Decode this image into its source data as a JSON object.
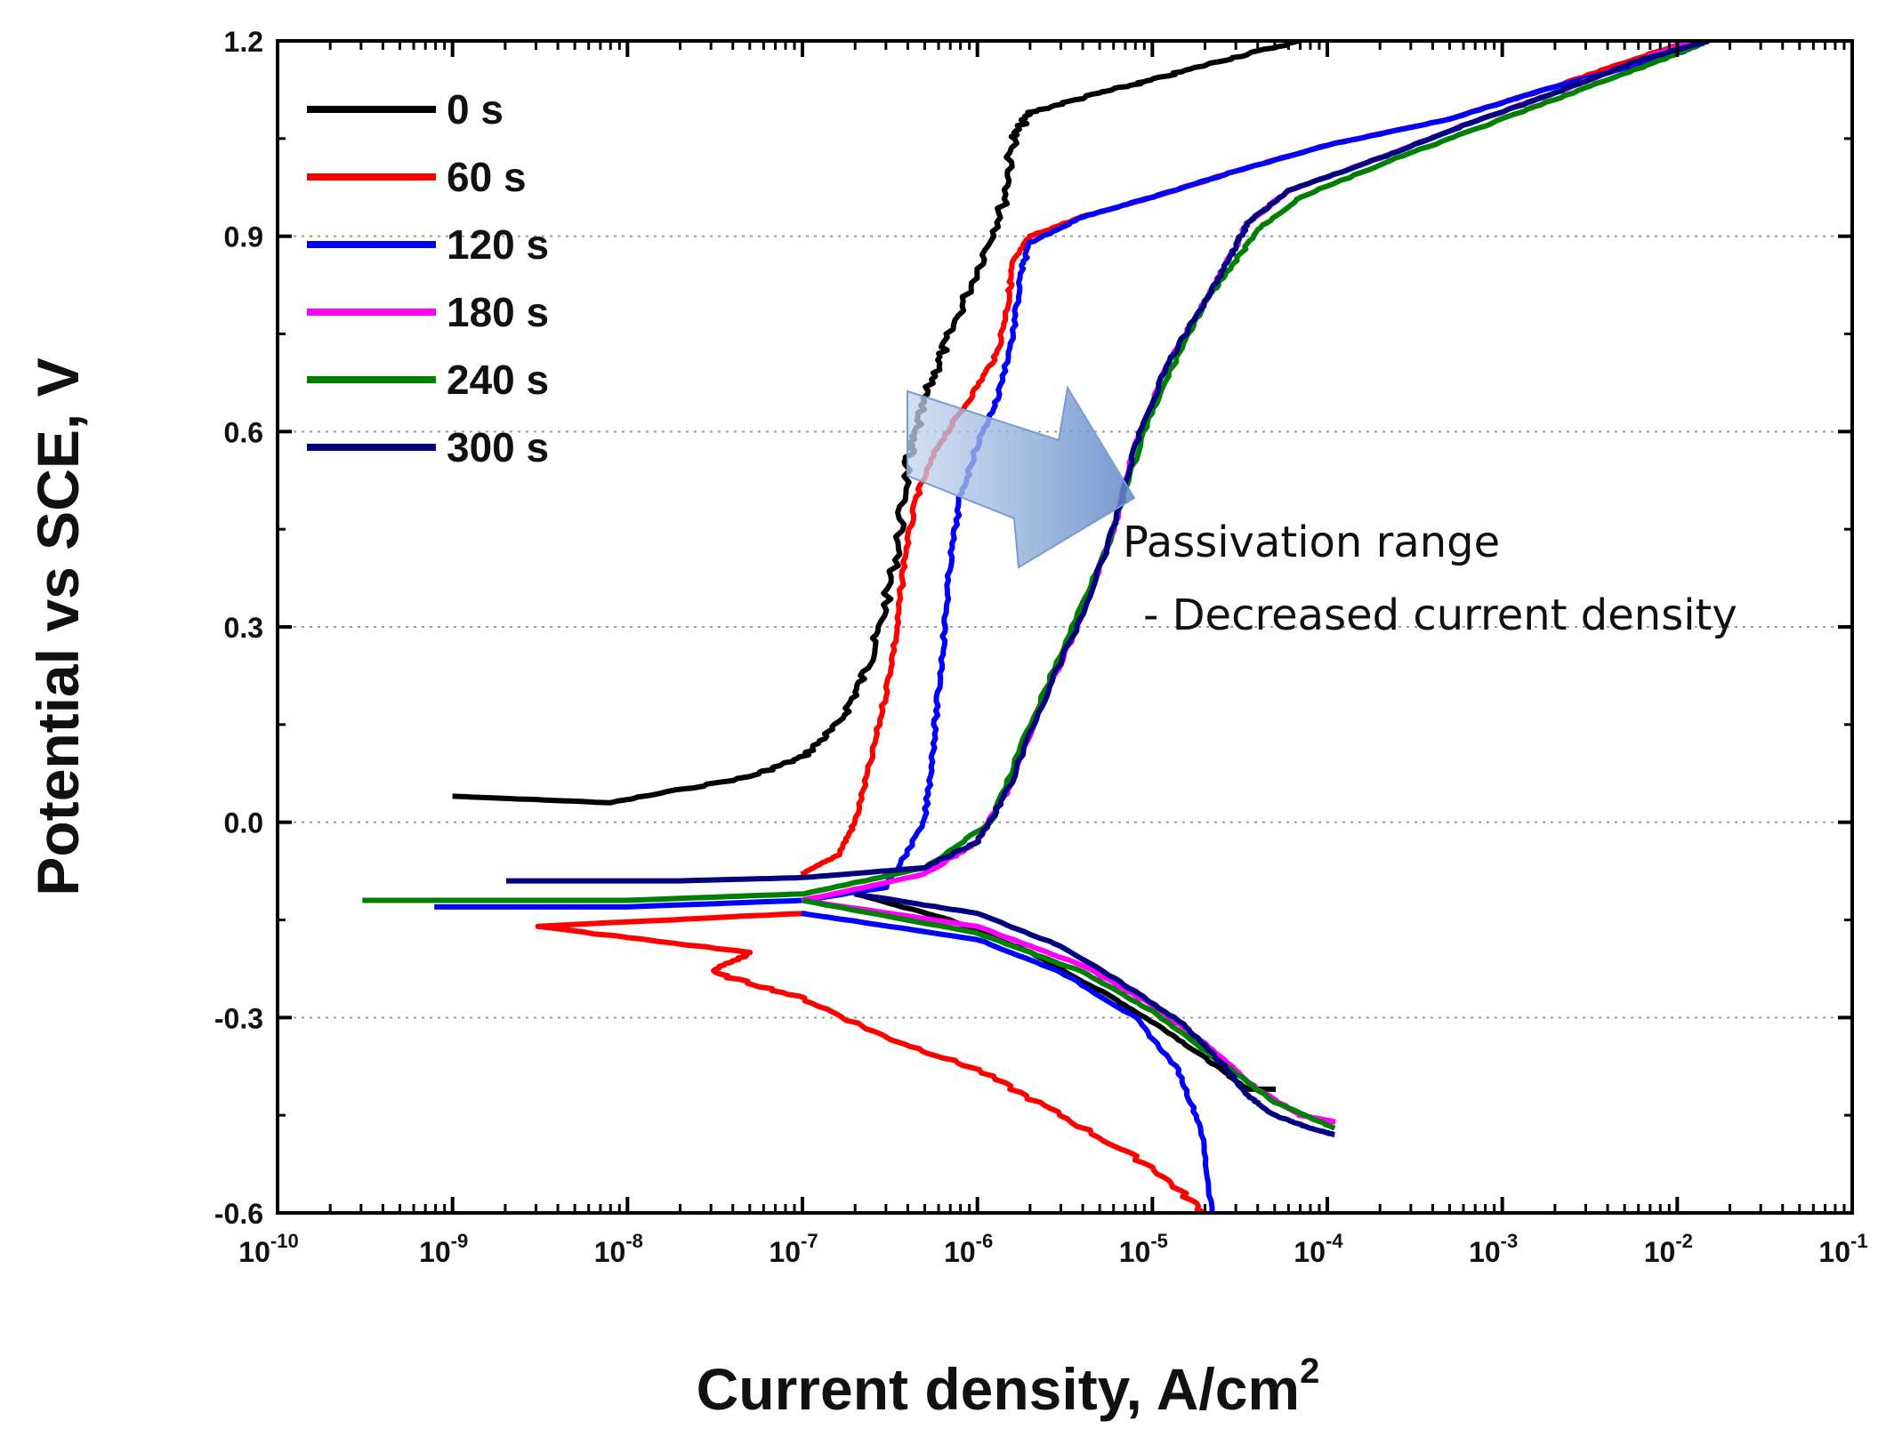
{
  "chart_data": {
    "type": "line",
    "title": "",
    "xlabel": "Current density, A/cm",
    "xlabel_superscript": "2",
    "ylabel": "Potential vs SCE, V",
    "xscale": "log",
    "xlim": [
      1e-10,
      0.1
    ],
    "ylim": [
      -0.6,
      1.2
    ],
    "x_ticks": [
      {
        "base": "10",
        "exp": "-10",
        "value": 1e-10
      },
      {
        "base": "10",
        "exp": "-9",
        "value": 1e-09
      },
      {
        "base": "10",
        "exp": "-8",
        "value": 1e-08
      },
      {
        "base": "10",
        "exp": "-7",
        "value": 1e-07
      },
      {
        "base": "10",
        "exp": "-6",
        "value": 1e-06
      },
      {
        "base": "10",
        "exp": "-5",
        "value": 1e-05
      },
      {
        "base": "10",
        "exp": "-4",
        "value": 0.0001
      },
      {
        "base": "10",
        "exp": "-3",
        "value": 0.001
      },
      {
        "base": "10",
        "exp": "-2",
        "value": 0.01
      },
      {
        "base": "10",
        "exp": "-1",
        "value": 0.1
      }
    ],
    "y_ticks": [
      {
        "label": "1.2",
        "value": 1.2
      },
      {
        "label": "0.9",
        "value": 0.9
      },
      {
        "label": "0.6",
        "value": 0.6
      },
      {
        "label": "0.3",
        "value": 0.3
      },
      {
        "label": "0.0",
        "value": 0.0
      },
      {
        "label": "-0.3",
        "value": -0.3
      },
      {
        "label": "-0.6",
        "value": -0.6
      }
    ],
    "grid": "horizontal dotted",
    "legend_position": "top-left",
    "series": [
      {
        "name": "0 s",
        "color": "#000000",
        "points": [
          [
            1e-09,
            0.04
          ],
          [
            8e-09,
            0.03
          ],
          [
            5e-08,
            0.07
          ],
          [
            1e-07,
            0.1
          ],
          [
            1.6e-07,
            0.15
          ],
          [
            2.2e-07,
            0.22
          ],
          [
            2.8e-07,
            0.3
          ],
          [
            3.5e-07,
            0.42
          ],
          [
            4e-07,
            0.55
          ],
          [
            4.5e-07,
            0.6
          ],
          [
            5.5e-07,
            0.68
          ],
          [
            7e-07,
            0.75
          ],
          [
            1e-06,
            0.85
          ],
          [
            1.4e-06,
            0.95
          ],
          [
            1.6e-06,
            1.05
          ],
          [
            2e-06,
            1.09
          ],
          [
            5e-06,
            1.12
          ],
          [
            1e-05,
            1.14
          ],
          [
            2.5e-05,
            1.17
          ],
          [
            7e-05,
            1.2
          ]
        ],
        "cathodic": [
          [
            2e-07,
            -0.11
          ],
          [
            7e-07,
            -0.15
          ],
          [
            2e-06,
            -0.2
          ],
          [
            6e-06,
            -0.27
          ],
          [
            1.2e-05,
            -0.32
          ],
          [
            2.2e-05,
            -0.37
          ],
          [
            3.5e-05,
            -0.41
          ],
          [
            5e-05,
            -0.41
          ]
        ]
      },
      {
        "name": "60 s",
        "color": "#ff0000",
        "points": [
          [
            1e-07,
            -0.08
          ],
          [
            1.6e-07,
            -0.05
          ],
          [
            2e-07,
            0.0
          ],
          [
            2.5e-07,
            0.1
          ],
          [
            3e-07,
            0.2
          ],
          [
            3.5e-07,
            0.3
          ],
          [
            3.8e-07,
            0.4
          ],
          [
            4.5e-07,
            0.5
          ],
          [
            6e-07,
            0.58
          ],
          [
            9e-07,
            0.65
          ],
          [
            1.3e-06,
            0.72
          ],
          [
            1.5e-06,
            0.8
          ],
          [
            1.6e-06,
            0.86
          ],
          [
            2e-06,
            0.9
          ],
          [
            4e-06,
            0.93
          ],
          [
            1e-05,
            0.96
          ],
          [
            3e-05,
            1.0
          ],
          [
            0.0001,
            1.04
          ],
          [
            0.0005,
            1.08
          ],
          [
            0.002,
            1.13
          ],
          [
            0.007,
            1.18
          ],
          [
            0.012,
            1.2
          ]
        ],
        "cathodic": [
          [
            1e-07,
            -0.14
          ],
          [
            3e-09,
            -0.16
          ],
          [
            5e-08,
            -0.2
          ],
          [
            3e-08,
            -0.23
          ],
          [
            1e-07,
            -0.27
          ],
          [
            3e-07,
            -0.33
          ],
          [
            1e-06,
            -0.38
          ],
          [
            3e-06,
            -0.45
          ],
          [
            1e-05,
            -0.53
          ],
          [
            2e-05,
            -0.6
          ]
        ]
      },
      {
        "name": "120 s",
        "color": "#0000ff",
        "points": [
          [
            8e-10,
            -0.13
          ],
          [
            1e-08,
            -0.13
          ],
          [
            1e-07,
            -0.12
          ],
          [
            3e-07,
            -0.1
          ],
          [
            5e-07,
            0.0
          ],
          [
            5.5e-07,
            0.1
          ],
          [
            6e-07,
            0.2
          ],
          [
            6.5e-07,
            0.3
          ],
          [
            7e-07,
            0.4
          ],
          [
            8e-07,
            0.5
          ],
          [
            1e-06,
            0.58
          ],
          [
            1.3e-06,
            0.65
          ],
          [
            1.6e-06,
            0.75
          ],
          [
            1.8e-06,
            0.85
          ],
          [
            2e-06,
            0.89
          ],
          [
            4e-06,
            0.93
          ],
          [
            1e-05,
            0.96
          ],
          [
            3e-05,
            1.0
          ],
          [
            0.0001,
            1.04
          ],
          [
            0.0005,
            1.08
          ],
          [
            0.002,
            1.13
          ],
          [
            0.01,
            1.18
          ],
          [
            0.015,
            1.2
          ]
        ],
        "cathodic": [
          [
            1e-07,
            -0.14
          ],
          [
            1e-06,
            -0.18
          ],
          [
            3e-06,
            -0.23
          ],
          [
            8e-06,
            -0.3
          ],
          [
            1.4e-05,
            -0.38
          ],
          [
            1.9e-05,
            -0.47
          ],
          [
            2.2e-05,
            -0.6
          ]
        ]
      },
      {
        "name": "180 s",
        "color": "#ff00ff",
        "points": [
          [
            1e-07,
            -0.12
          ],
          [
            5e-07,
            -0.08
          ],
          [
            1e-06,
            -0.03
          ],
          [
            1.5e-06,
            0.05
          ],
          [
            2.5e-06,
            0.2
          ],
          [
            4e-06,
            0.32
          ],
          [
            6e-06,
            0.45
          ],
          [
            8e-06,
            0.58
          ],
          [
            1.2e-05,
            0.7
          ],
          [
            2e-05,
            0.8
          ],
          [
            2.8e-05,
            0.87
          ],
          [
            3.5e-05,
            0.92
          ],
          [
            6e-05,
            0.97
          ],
          [
            0.0002,
            1.02
          ],
          [
            0.0006,
            1.07
          ],
          [
            0.002,
            1.12
          ],
          [
            0.006,
            1.17
          ],
          [
            0.012,
            1.2
          ]
        ],
        "cathodic": [
          [
            1e-07,
            -0.12
          ],
          [
            1e-06,
            -0.16
          ],
          [
            4e-06,
            -0.22
          ],
          [
            1e-05,
            -0.28
          ],
          [
            2e-05,
            -0.34
          ],
          [
            4e-05,
            -0.41
          ],
          [
            7e-05,
            -0.45
          ],
          [
            0.00011,
            -0.46
          ]
        ]
      },
      {
        "name": "240 s",
        "color": "#008000",
        "points": [
          [
            3e-10,
            -0.12
          ],
          [
            1e-08,
            -0.12
          ],
          [
            1e-07,
            -0.11
          ],
          [
            5e-07,
            -0.07
          ],
          [
            1.2e-06,
            0.0
          ],
          [
            2e-06,
            0.15
          ],
          [
            3.5e-06,
            0.3
          ],
          [
            6e-06,
            0.45
          ],
          [
            9e-06,
            0.6
          ],
          [
            1.3e-05,
            0.7
          ],
          [
            2e-05,
            0.8
          ],
          [
            2.8e-05,
            0.85
          ],
          [
            4e-05,
            0.91
          ],
          [
            7e-05,
            0.96
          ],
          [
            0.00025,
            1.02
          ],
          [
            0.0008,
            1.07
          ],
          [
            0.0025,
            1.12
          ],
          [
            0.008,
            1.17
          ],
          [
            0.015,
            1.2
          ]
        ],
        "cathodic": [
          [
            1e-07,
            -0.12
          ],
          [
            1e-06,
            -0.17
          ],
          [
            4e-06,
            -0.23
          ],
          [
            1e-05,
            -0.29
          ],
          [
            2.5e-05,
            -0.37
          ],
          [
            5e-05,
            -0.43
          ],
          [
            0.00011,
            -0.47
          ]
        ]
      },
      {
        "name": "300 s",
        "color": "#000080",
        "points": [
          [
            2e-09,
            -0.09
          ],
          [
            2e-08,
            -0.09
          ],
          [
            1e-07,
            -0.085
          ],
          [
            5e-07,
            -0.07
          ],
          [
            1e-06,
            -0.03
          ],
          [
            1.5e-06,
            0.05
          ],
          [
            2.5e-06,
            0.2
          ],
          [
            4e-06,
            0.32
          ],
          [
            6e-06,
            0.45
          ],
          [
            8e-06,
            0.58
          ],
          [
            1.2e-05,
            0.7
          ],
          [
            2e-05,
            0.8
          ],
          [
            2.8e-05,
            0.87
          ],
          [
            3.5e-05,
            0.92
          ],
          [
            6e-05,
            0.97
          ],
          [
            0.0002,
            1.02
          ],
          [
            0.0006,
            1.07
          ],
          [
            0.002,
            1.12
          ],
          [
            0.006,
            1.17
          ],
          [
            0.015,
            1.2
          ]
        ],
        "cathodic": [
          [
            2e-07,
            -0.11
          ],
          [
            1e-06,
            -0.14
          ],
          [
            3e-06,
            -0.19
          ],
          [
            8e-06,
            -0.26
          ],
          [
            1.5e-05,
            -0.31
          ],
          [
            2.5e-05,
            -0.37
          ],
          [
            3.5e-05,
            -0.42
          ],
          [
            5e-05,
            -0.45
          ],
          [
            8e-05,
            -0.47
          ],
          [
            0.00011,
            -0.48
          ]
        ]
      }
    ],
    "annotation": {
      "line1": "Passivation range",
      "line2": "- Decreased current density"
    },
    "arrow_color": "#7a9bd0"
  }
}
